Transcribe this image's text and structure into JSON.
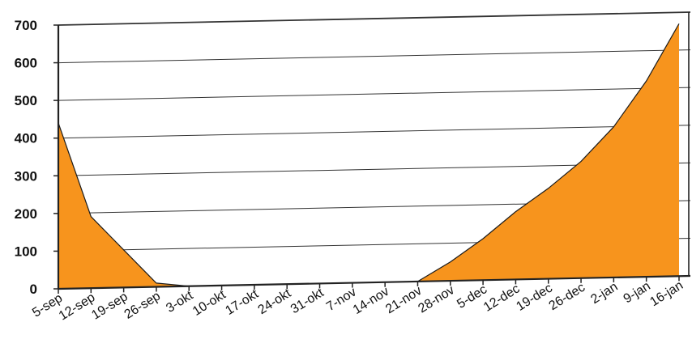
{
  "chart_data": {
    "type": "area",
    "title": "",
    "xlabel": "",
    "ylabel": "",
    "ylim": [
      0,
      700
    ],
    "yticks": [
      0,
      100,
      200,
      300,
      400,
      500,
      600,
      700
    ],
    "ytick_labels": [
      "0",
      "100",
      "200",
      "300",
      "400",
      "500",
      "600",
      "700"
    ],
    "grid": true,
    "categories": [
      "5-sep",
      "12-sep",
      "19-sep",
      "26-sep",
      "3-okt",
      "10-okt",
      "17-okt",
      "24-okt",
      "31-okt",
      "7-nov",
      "14-nov",
      "21-nov",
      "28-nov",
      "5-dec",
      "12-dec",
      "19-dec",
      "26-dec",
      "2-jan",
      "9-jan",
      "16-jan"
    ],
    "series": [
      {
        "values": [
          440,
          190,
          100,
          10,
          0,
          0,
          0,
          0,
          0,
          0,
          0,
          0,
          50,
          110,
          180,
          240,
          310,
          400,
          520,
          670
        ]
      }
    ],
    "colors": {
      "fill": "#f7941d",
      "line": "#1a1a1a",
      "grid": "#333333"
    }
  }
}
